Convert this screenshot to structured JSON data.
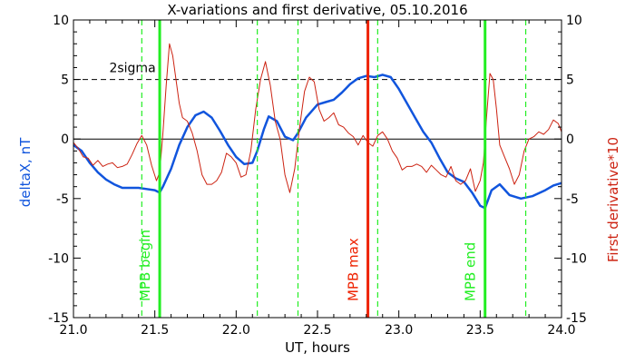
{
  "chart_data": {
    "type": "line",
    "title": "X-variations and first derivative, 05.10.2016",
    "xlabel": "UT, hours",
    "ylabel_left": "deltaX, nT",
    "ylabel_right": "First derivative*10",
    "xlim": [
      21.0,
      24.0
    ],
    "ylim": [
      -15,
      10
    ],
    "grid": false,
    "x_ticks": [
      "21.0",
      "21.5",
      "22.0",
      "22.5",
      "23.0",
      "23.5",
      "24.0"
    ],
    "y_ticks_left": [
      "10",
      "5",
      "0",
      "-5",
      "-10",
      "-15"
    ],
    "y_ticks_right": [
      "10",
      "5",
      "0",
      "-5",
      "-10",
      "-15"
    ],
    "colors": {
      "deltaX": "#1155dd",
      "derivative": "#cc2211",
      "mpb": "#22ee22",
      "max": "#ee2200"
    },
    "series": [
      {
        "name": "deltaX",
        "axis": "left",
        "x": [
          21.0,
          21.05,
          21.1,
          21.15,
          21.2,
          21.25,
          21.3,
          21.35,
          21.4,
          21.45,
          21.5,
          21.53,
          21.55,
          21.6,
          21.65,
          21.7,
          21.75,
          21.8,
          21.85,
          21.9,
          21.95,
          22.0,
          22.05,
          22.1,
          22.13,
          22.17,
          22.2,
          22.25,
          22.3,
          22.35,
          22.38,
          22.43,
          22.5,
          22.55,
          22.6,
          22.65,
          22.7,
          22.75,
          22.8,
          22.85,
          22.9,
          22.95,
          23.0,
          23.05,
          23.1,
          23.15,
          23.2,
          23.25,
          23.3,
          23.35,
          23.4,
          23.45,
          23.5,
          23.53,
          23.57,
          23.62,
          23.68,
          23.75,
          23.82,
          23.9,
          23.95,
          24.0
        ],
        "y": [
          -0.5,
          -1.0,
          -2.0,
          -2.8,
          -3.4,
          -3.8,
          -4.1,
          -4.1,
          -4.1,
          -4.2,
          -4.3,
          -4.5,
          -4.0,
          -2.5,
          -0.5,
          1.0,
          2.0,
          2.3,
          1.8,
          0.7,
          -0.5,
          -1.5,
          -2.1,
          -2.0,
          -1.0,
          0.8,
          1.9,
          1.5,
          0.2,
          -0.1,
          0.5,
          1.8,
          2.9,
          3.1,
          3.3,
          3.9,
          4.6,
          5.1,
          5.3,
          5.2,
          5.4,
          5.2,
          4.2,
          3.0,
          1.8,
          0.6,
          -0.3,
          -1.6,
          -2.8,
          -3.3,
          -3.6,
          -4.5,
          -5.6,
          -5.8,
          -4.3,
          -3.8,
          -4.7,
          -5.0,
          -4.8,
          -4.3,
          -3.9,
          -3.7
        ]
      },
      {
        "name": "derivative",
        "axis": "right",
        "x": [
          21.0,
          21.03,
          21.06,
          21.09,
          21.12,
          21.15,
          21.18,
          21.21,
          21.24,
          21.27,
          21.3,
          21.33,
          21.36,
          21.39,
          21.42,
          21.45,
          21.48,
          21.51,
          21.53,
          21.55,
          21.57,
          21.59,
          21.61,
          21.63,
          21.65,
          21.67,
          21.7,
          21.73,
          21.76,
          21.79,
          21.82,
          21.85,
          21.88,
          21.91,
          21.94,
          21.97,
          22.0,
          22.03,
          22.06,
          22.09,
          22.12,
          22.15,
          22.18,
          22.21,
          22.24,
          22.27,
          22.3,
          22.33,
          22.36,
          22.39,
          22.42,
          22.45,
          22.48,
          22.51,
          22.54,
          22.57,
          22.6,
          22.63,
          22.66,
          22.69,
          22.72,
          22.75,
          22.78,
          22.81,
          22.84,
          22.87,
          22.9,
          22.93,
          22.96,
          22.99,
          23.02,
          23.05,
          23.08,
          23.11,
          23.14,
          23.17,
          23.2,
          23.23,
          23.26,
          23.29,
          23.32,
          23.35,
          23.38,
          23.41,
          23.44,
          23.47,
          23.5,
          23.52,
          23.54,
          23.56,
          23.58,
          23.6,
          23.62,
          23.65,
          23.68,
          23.71,
          23.74,
          23.77,
          23.8,
          23.83,
          23.86,
          23.89,
          23.92,
          23.95,
          23.98,
          24.0
        ],
        "y": [
          -0.3,
          -0.8,
          -1.5,
          -1.6,
          -2.2,
          -1.8,
          -2.3,
          -2.1,
          -2.0,
          -2.4,
          -2.3,
          -2.1,
          -1.3,
          -0.4,
          0.3,
          -0.5,
          -2.2,
          -3.5,
          -2.8,
          0.5,
          4.5,
          8.0,
          7.0,
          5.0,
          3.0,
          1.8,
          1.5,
          0.5,
          -1.0,
          -3.0,
          -3.8,
          -3.8,
          -3.5,
          -2.8,
          -1.2,
          -1.5,
          -2.0,
          -3.2,
          -3.0,
          -1.0,
          2.5,
          5.0,
          6.5,
          4.5,
          1.5,
          0.0,
          -3.0,
          -4.5,
          -2.5,
          1.0,
          4.0,
          5.2,
          4.8,
          2.5,
          1.5,
          1.8,
          2.2,
          1.2,
          1.0,
          0.5,
          0.2,
          -0.5,
          0.3,
          -0.3,
          -0.6,
          0.3,
          0.6,
          0.0,
          -1.0,
          -1.6,
          -2.6,
          -2.3,
          -2.3,
          -2.1,
          -2.3,
          -2.8,
          -2.2,
          -2.6,
          -3.0,
          -3.2,
          -2.3,
          -3.5,
          -3.8,
          -3.5,
          -2.5,
          -4.4,
          -3.5,
          -2.0,
          2.0,
          5.5,
          5.0,
          2.5,
          -0.5,
          -1.5,
          -2.5,
          -3.8,
          -3.0,
          -1.0,
          0.0,
          0.2,
          0.6,
          0.4,
          0.8,
          1.6,
          1.3,
          0.6
        ]
      }
    ],
    "vlines": [
      {
        "x": 21.42,
        "style": "dashed",
        "color": "green"
      },
      {
        "x": 21.53,
        "style": "solid",
        "color": "green",
        "label": "MPB begin"
      },
      {
        "x": 22.13,
        "style": "dashed",
        "color": "green"
      },
      {
        "x": 22.38,
        "style": "dashed",
        "color": "green"
      },
      {
        "x": 22.81,
        "style": "solid",
        "color": "red",
        "label": "MPB max"
      },
      {
        "x": 22.87,
        "style": "dashed",
        "color": "green"
      },
      {
        "x": 23.53,
        "style": "solid",
        "color": "green",
        "label": "MPB end"
      },
      {
        "x": 23.78,
        "style": "dashed",
        "color": "green"
      }
    ],
    "hlines": [
      {
        "y": 0,
        "style": "solid"
      },
      {
        "y": 5,
        "style": "dashed",
        "label": "2sigma"
      }
    ]
  }
}
